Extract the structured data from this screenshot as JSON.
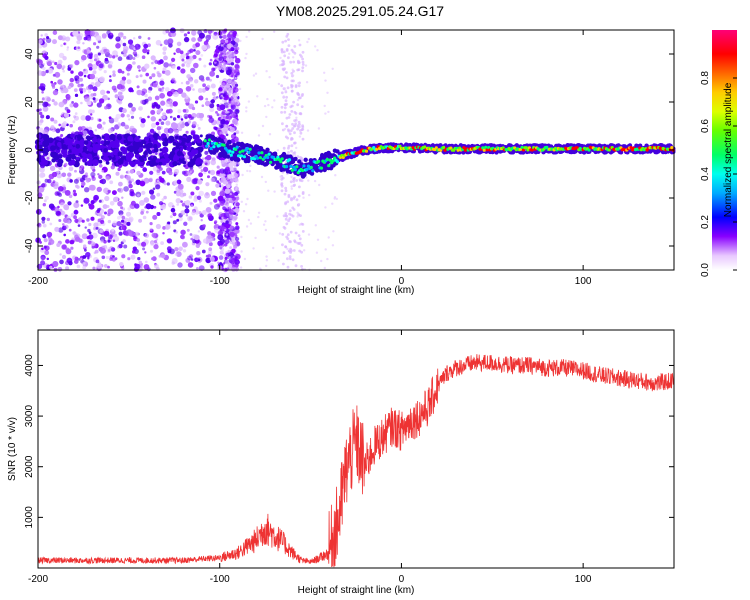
{
  "title": "YM08.2025.291.05.24.G17",
  "chart_data": [
    {
      "id": "spectrogram",
      "type": "heatmap",
      "xlabel": "Height of straight line (km)",
      "ylabel": "Frequency (Hz)",
      "xlim": [
        -200,
        150
      ],
      "ylim": [
        -50,
        50
      ],
      "xticks": [
        -200,
        -100,
        0,
        100
      ],
      "yticks": [
        -40,
        -20,
        0,
        20,
        40
      ],
      "colorbar": {
        "label": "Normalized spectral amplitude",
        "range": [
          0,
          1
        ],
        "ticks": [
          0.0,
          0.2,
          0.4,
          0.6,
          0.8
        ],
        "tick_labels": [
          "0.0",
          "0.2",
          "0.4",
          "0.6",
          "0.8"
        ]
      },
      "dominant_frequency_track": {
        "x": [
          -108,
          -95,
          -80,
          -65,
          -55,
          -45,
          -38,
          -30,
          -20,
          -10,
          0,
          20,
          50,
          100,
          150
        ],
        "y": [
          3,
          0,
          -2,
          -5,
          -8,
          -6,
          -4,
          -2,
          0,
          1,
          1,
          0.5,
          0.5,
          0.5,
          0.5
        ]
      }
    },
    {
      "id": "snr",
      "type": "line",
      "xlabel": "Height of straight line (km)",
      "ylabel": "SNR (10 * v/v)",
      "xlim": [
        -200,
        150
      ],
      "ylim": [
        0,
        4700
      ],
      "xticks": [
        -200,
        -100,
        0,
        100
      ],
      "yticks": [
        1000,
        2000,
        3000,
        4000
      ],
      "series": [
        {
          "name": "SNR",
          "color": "#ee3333",
          "x": [
            -200,
            -180,
            -160,
            -140,
            -120,
            -110,
            -100,
            -90,
            -80,
            -75,
            -70,
            -65,
            -60,
            -55,
            -50,
            -45,
            -40,
            -35,
            -30,
            -25,
            -20,
            -15,
            -10,
            -5,
            0,
            5,
            10,
            15,
            20,
            25,
            30,
            40,
            50,
            60,
            70,
            80,
            90,
            100,
            110,
            120,
            130,
            140,
            150
          ],
          "y": [
            150,
            150,
            150,
            150,
            150,
            180,
            200,
            300,
            550,
            800,
            650,
            500,
            300,
            150,
            120,
            200,
            300,
            900,
            2000,
            2500,
            2000,
            2400,
            2600,
            2800,
            2700,
            2900,
            3000,
            3200,
            3600,
            3850,
            3950,
            4050,
            4050,
            4000,
            4000,
            3950,
            3950,
            3900,
            3800,
            3750,
            3700,
            3650,
            3700
          ]
        }
      ]
    }
  ]
}
